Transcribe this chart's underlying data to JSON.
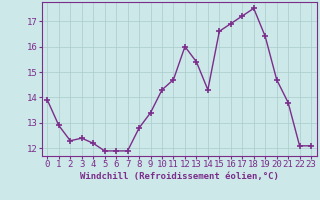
{
  "x": [
    0,
    1,
    2,
    3,
    4,
    5,
    6,
    7,
    8,
    9,
    10,
    11,
    12,
    13,
    14,
    15,
    16,
    17,
    18,
    19,
    20,
    21,
    22,
    23
  ],
  "y": [
    13.9,
    12.9,
    12.3,
    12.4,
    12.2,
    11.9,
    11.9,
    11.9,
    12.8,
    13.4,
    14.3,
    14.7,
    16.0,
    15.4,
    14.3,
    16.6,
    16.9,
    17.2,
    17.5,
    16.4,
    14.7,
    13.8,
    12.1,
    12.1
  ],
  "line_color": "#7b2d8b",
  "marker": "+",
  "marker_size": 4,
  "marker_lw": 1.2,
  "bg_color": "#cce8e8",
  "grid_color": "#aacccc",
  "xlabel": "Windchill (Refroidissement éolien,°C)",
  "ylabel_ticks": [
    12,
    13,
    14,
    15,
    16,
    17
  ],
  "xtick_labels": [
    "0",
    "1",
    "2",
    "3",
    "4",
    "5",
    "6",
    "7",
    "8",
    "9",
    "10",
    "11",
    "12",
    "13",
    "14",
    "15",
    "16",
    "17",
    "18",
    "19",
    "20",
    "21",
    "22",
    "23"
  ],
  "xlim": [
    -0.5,
    23.5
  ],
  "ylim": [
    11.7,
    17.75
  ],
  "xlabel_fontsize": 6.5,
  "tick_fontsize": 6.5,
  "tick_color": "#7b2d8b",
  "spine_color": "#7b2d8b",
  "line_width": 1.0
}
